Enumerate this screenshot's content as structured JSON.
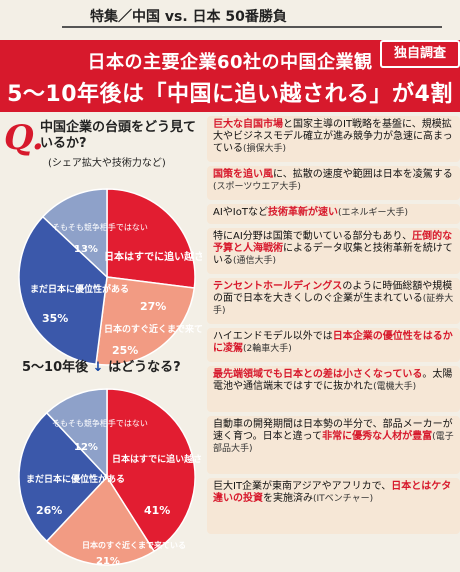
{
  "header": {
    "title": "特集／中国 vs. 日本 50番勝負"
  },
  "banner": {
    "line1": "日本の主要企業60社の中国企業観",
    "line2": "5〜10年後は「中国に追い越される」が4割に",
    "badge": "独自調査"
  },
  "question": {
    "q_mark": "Q.",
    "text": "中国企業の台頭をどう見ているか?",
    "sub": "(シェア拡大や技術力など)"
  },
  "question2": {
    "text": "5〜10年後",
    "arrow": "↓",
    "rest": "はどうなる?"
  },
  "colors": {
    "red": "#e21d31",
    "salmon": "#f29b83",
    "blue": "#3b58aa",
    "gray": "#8ea1c9"
  },
  "chart_data": [
    {
      "type": "pie",
      "title": "中国企業の台頭をどう見ているか?",
      "slices": [
        {
          "name": "日本はすでに追い越されている",
          "value": 27
        },
        {
          "name": "日本のすぐ近くまで来ている",
          "value": 25
        },
        {
          "name": "まだ日本に優位性がある",
          "value": 35
        },
        {
          "name": "そもそも競争相手ではない",
          "value": 13
        }
      ]
    },
    {
      "type": "pie",
      "title": "5〜10年後はどうなる?",
      "slices": [
        {
          "name": "日本はすでに追い越されている",
          "value": 41
        },
        {
          "name": "日本のすぐ近くまで来ている",
          "value": 21
        },
        {
          "name": "まだ日本に優位性がある",
          "value": 26
        },
        {
          "name": "そもそも競争相手ではない",
          "value": 12
        }
      ]
    }
  ],
  "pie1_labels": {
    "red": "日本はすでに追い越されている",
    "red_pct": "27%",
    "salmon": "日本のすぐ近くまで来ている",
    "salmon_pct": "25%",
    "blue": "まだ日本に優位性がある",
    "blue_pct": "35%",
    "gray": "そもそも競争相手ではない",
    "gray_pct": "13%"
  },
  "pie2_labels": {
    "red": "日本はすでに追い越されている",
    "red_pct": "41%",
    "salmon": "日本のすぐ近くまで来ている",
    "salmon_pct": "21%",
    "blue": "まだ日本に優位性がある",
    "blue_pct": "26%",
    "gray": "そもそも競争相手ではない",
    "gray_pct": "12%"
  },
  "comments": [
    {
      "hl": "巨大な自国市場",
      "text": "と国家主導のIT戦略を基盤に、規模拡大やビジネスモデル確立が進み競争力が急速に高まっている",
      "org": "(損保大手)"
    },
    {
      "hl": "国策を追い風",
      "text": "に、拡散の速度や範囲は日本を凌駕する",
      "org": "(スポーツウエア大手)"
    },
    {
      "hl": "技術革新が速い",
      "pre": "AIやIoTなど",
      "text": "",
      "org": "(エネルギー大手)"
    },
    {
      "hl": "圧倒的な予算と人海戦術",
      "pre": "特にAI分野は国策で動いている部分もあり、",
      "text": "によるデータ収集と技術革新を続けている",
      "org": "(通信大手)"
    },
    {
      "hl": "テンセントホールディングス",
      "text": "のように時価総額や規模の面で日本を大きくしのぐ企業が生まれている",
      "org": "(証券大手)"
    },
    {
      "hl": "日本企業の優位性をはるかに凌駕",
      "pre": "ハイエンドモデル以外では",
      "text": "",
      "org": "(2輪車大手)"
    },
    {
      "hl": "最先端領域でも日本との差は小さくなっている",
      "text": "。太陽電池や通信端末ではすでに抜かれた",
      "org": "(電機大手)"
    },
    {
      "hl": "非常に優秀な人材が豊富",
      "pre": "自動車の開発期間は日本勢の半分で、部品メーカーが速く育つ。日本と違って",
      "text": "",
      "org": "(電子部品大手)"
    },
    {
      "hl": "日本とはケタ違いの投資",
      "pre": "巨大IT企業が東南アジアやアフリカで、",
      "text": "を実施済み",
      "org": "(ITベンチャー)"
    }
  ]
}
